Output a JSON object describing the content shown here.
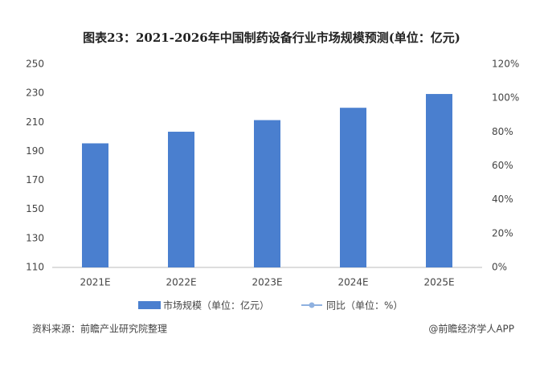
{
  "chart_data": {
    "type": "bar",
    "title": "图表23：2021-2026年中国制药设备行业市场规模预测(单位：亿元)",
    "categories": [
      "2021E",
      "2022E",
      "2023E",
      "2024E",
      "2025E"
    ],
    "series": [
      {
        "name": "市场规模（单位：亿元）",
        "type": "bar",
        "color": "#4a7fcf",
        "values": [
          195.5,
          203.5,
          211.5,
          220,
          229.5
        ]
      },
      {
        "name": "同比（单位：%）",
        "type": "line",
        "axis": "y2",
        "color": "#8fb1e0",
        "values": [
          null,
          null,
          null,
          null,
          null
        ]
      }
    ],
    "ylim": [
      110,
      250
    ],
    "yticks": [
      110,
      130,
      150,
      170,
      190,
      210,
      230,
      250
    ],
    "y2lim": [
      0,
      120
    ],
    "y2ticks": [
      {
        "value": 0,
        "label": "0%"
      },
      {
        "value": 20,
        "label": "20%"
      },
      {
        "value": 40,
        "label": "40%"
      },
      {
        "value": 60,
        "label": "60%"
      },
      {
        "value": 80,
        "label": "80%"
      },
      {
        "value": 100,
        "label": "100%"
      },
      {
        "value": 120,
        "label": "120%"
      }
    ],
    "grid": false,
    "legend": "bottom",
    "source": "资料来源：前瞻产业研究院整理",
    "credit": "@前瞻经济学人APP"
  }
}
